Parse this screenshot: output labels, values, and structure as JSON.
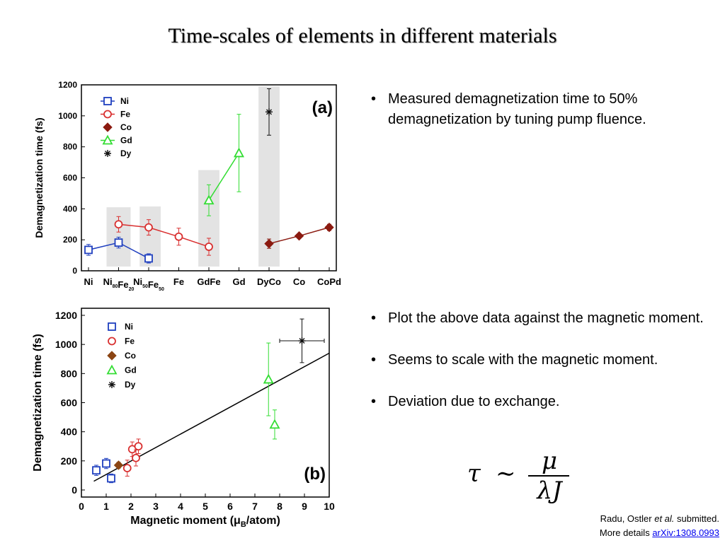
{
  "title": "Time-scales of elements in different materials",
  "bullets_top": [
    "Measured demagnetization time to 50% demagnetization by tuning pump fluence."
  ],
  "bullets_bottom": [
    "Plot the above data against the magnetic moment.",
    "Seems to scale with the magnetic moment.",
    "Deviation due to exchange."
  ],
  "formula": {
    "lhs": "τ",
    "rel": "∼",
    "numerator": "μ",
    "denominator": "λJ"
  },
  "credit": {
    "line1_prefix": "Radu, Ostler ",
    "line1_italic": "et al.",
    "line1_suffix": " submitted.",
    "line2_prefix": "More details ",
    "link": "arXiv:1308.0993"
  },
  "chart_data": [
    {
      "type": "line",
      "panel_label": "(a)",
      "ylabel": "Demagnetization time (fs)",
      "xlabel": "",
      "ylim": [
        0,
        1200
      ],
      "yticks": [
        0,
        200,
        400,
        600,
        800,
        1000,
        1200
      ],
      "categories": [
        {
          "label": "Ni"
        },
        {
          "label": "Ni",
          "sub1": "80",
          "mid": "Fe",
          "sub2": "20"
        },
        {
          "label": "Ni",
          "sub1": "50",
          "mid": "Fe",
          "sub2": "50"
        },
        {
          "label": "Fe"
        },
        {
          "label": "GdFe"
        },
        {
          "label": "Gd"
        },
        {
          "label": "DyCo"
        },
        {
          "label": "Co"
        },
        {
          "label": "CoPd"
        }
      ],
      "legend_position": "top-left",
      "series": [
        {
          "name": "Ni",
          "color": "#1f3fbf",
          "marker": "square-open",
          "points": [
            {
              "x": 0,
              "y": 135,
              "err": 35
            },
            {
              "x": 1,
              "y": 182,
              "err": 35
            },
            {
              "x": 2,
              "y": 80,
              "err": 30
            }
          ]
        },
        {
          "name": "Fe",
          "color": "#d93030",
          "marker": "circle-open",
          "points": [
            {
              "x": 1,
              "y": 300,
              "err": 50
            },
            {
              "x": 2,
              "y": 280,
              "err": 50
            },
            {
              "x": 3,
              "y": 220,
              "err": 55
            },
            {
              "x": 4,
              "y": 155,
              "err": 55
            }
          ]
        },
        {
          "name": "Co",
          "color": "#8b1a10",
          "marker": "diamond-filled",
          "points": [
            {
              "x": 6,
              "y": 175,
              "err": 30
            },
            {
              "x": 7,
              "y": 225,
              "err": 10
            },
            {
              "x": 8,
              "y": 280,
              "err": 20
            }
          ]
        },
        {
          "name": "Gd",
          "color": "#33dd33",
          "marker": "triangle-open",
          "points": [
            {
              "x": 4,
              "y": 455,
              "err": 100
            },
            {
              "x": 5,
              "y": 760,
              "err": 250
            }
          ]
        },
        {
          "name": "Dy",
          "color": "#111111",
          "marker": "star",
          "points": [
            {
              "x": 6,
              "y": 1025,
              "err": 150
            }
          ]
        }
      ],
      "shaded_bands": [
        {
          "from": 0.6,
          "to": 1.4,
          "ymax": 410
        },
        {
          "from": 1.7,
          "to": 2.4,
          "ymax": 415
        },
        {
          "from": 3.65,
          "to": 4.35,
          "ymax": 650
        },
        {
          "from": 5.65,
          "to": 6.35,
          "ymax": 1190
        }
      ]
    },
    {
      "type": "scatter",
      "panel_label": "(b)",
      "xlabel": "Magnetic moment (μB/atom)",
      "xlabel_parts": {
        "pre": "Magnetic moment (μ",
        "sub": "B",
        "post": "/atom)"
      },
      "ylabel": "Demagnetization time (fs)",
      "xlim": [
        0,
        10
      ],
      "ylim": [
        0,
        1200
      ],
      "xticks": [
        0,
        1,
        2,
        3,
        4,
        5,
        6,
        7,
        8,
        9,
        10
      ],
      "yticks": [
        0,
        200,
        400,
        600,
        800,
        1000,
        1200
      ],
      "legend_position": "top-left",
      "fit_line": {
        "x": [
          0.5,
          10
        ],
        "y": [
          60,
          940
        ]
      },
      "series": [
        {
          "name": "Ni",
          "color": "#1f3fbf",
          "marker": "square-open",
          "points": [
            {
              "x": 0.6,
              "y": 135,
              "yerr": 35
            },
            {
              "x": 1.0,
              "y": 182,
              "yerr": 35
            },
            {
              "x": 1.2,
              "y": 80,
              "yerr": 30
            }
          ]
        },
        {
          "name": "Fe",
          "color": "#d93030",
          "marker": "circle-open",
          "points": [
            {
              "x": 2.05,
              "y": 280,
              "yerr": 50
            },
            {
              "x": 2.3,
              "y": 300,
              "yerr": 50
            },
            {
              "x": 2.2,
              "y": 220,
              "yerr": 55
            },
            {
              "x": 1.85,
              "y": 150,
              "yerr": 55
            }
          ]
        },
        {
          "name": "Co",
          "color": "#8b4513",
          "marker": "diamond-filled",
          "points": [
            {
              "x": 1.5,
              "y": 170,
              "yerr": 20
            }
          ]
        },
        {
          "name": "Gd",
          "color": "#33dd33",
          "marker": "triangle-open",
          "points": [
            {
              "x": 7.55,
              "y": 760,
              "yerr": 250
            },
            {
              "x": 7.8,
              "y": 450,
              "yerr": 100
            }
          ]
        },
        {
          "name": "Dy",
          "color": "#111111",
          "marker": "star",
          "points": [
            {
              "x": 8.9,
              "y": 1025,
              "yerr": 150,
              "xerr": 0.9
            }
          ]
        }
      ]
    }
  ]
}
